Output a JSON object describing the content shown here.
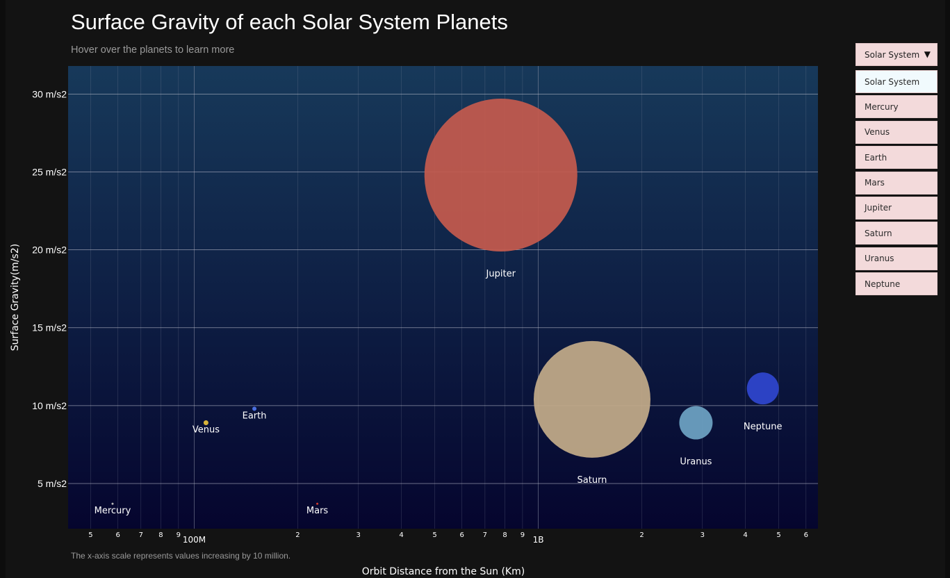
{
  "header": {
    "title": "Surface Gravity of each Solar System Planets",
    "subtitle": "Hover over the planets to learn more"
  },
  "footnote": "The x-axis scale represents values increasing by 10 million.",
  "dropdown": {
    "selected": "Solar System",
    "arrow": "▼",
    "options": [
      "Solar System",
      "Mercury",
      "Venus",
      "Earth",
      "Mars",
      "Jupiter",
      "Saturn",
      "Uranus",
      "Neptune"
    ]
  },
  "chart_data": {
    "type": "scatter",
    "title": "Surface Gravity of each Solar System Planets",
    "subtitle": "Hover over the planets to learn more",
    "xlabel": "Orbit Distance from the Sun (Km)",
    "ylabel": "Surface Gravity(m/s2)",
    "x_scale": "log",
    "xlim": [
      43000000,
      6500000000
    ],
    "ylim": [
      2.1,
      31.8
    ],
    "y_ticks": [
      5,
      10,
      15,
      20,
      25,
      30
    ],
    "y_tick_labels": [
      "5 m/s2",
      "10 m/s2",
      "15 m/s2",
      "20 m/s2",
      "25 m/s2",
      "30 m/s2"
    ],
    "x_ticks": [
      {
        "value": 50000000,
        "label": "5"
      },
      {
        "value": 60000000,
        "label": "6"
      },
      {
        "value": 70000000,
        "label": "7"
      },
      {
        "value": 80000000,
        "label": "8"
      },
      {
        "value": 90000000,
        "label": "9"
      },
      {
        "value": 100000000,
        "label": "100M"
      },
      {
        "value": 200000000,
        "label": "2"
      },
      {
        "value": 300000000,
        "label": "3"
      },
      {
        "value": 400000000,
        "label": "4"
      },
      {
        "value": 500000000,
        "label": "5"
      },
      {
        "value": 600000000,
        "label": "6"
      },
      {
        "value": 700000000,
        "label": "7"
      },
      {
        "value": 800000000,
        "label": "8"
      },
      {
        "value": 900000000,
        "label": "9"
      },
      {
        "value": 1000000000,
        "label": "1B"
      },
      {
        "value": 2000000000,
        "label": "2"
      },
      {
        "value": 3000000000,
        "label": "3"
      },
      {
        "value": 4000000000,
        "label": "4"
      },
      {
        "value": 5000000000,
        "label": "5"
      },
      {
        "value": 6000000000,
        "label": "6"
      }
    ],
    "grid": true,
    "legend": "none",
    "series": [
      {
        "name": "Mercury",
        "x": 57900000,
        "y": 3.7,
        "size": 1.5,
        "color": "#b9b9b9"
      },
      {
        "name": "Venus",
        "x": 108200000,
        "y": 8.9,
        "size": 3.5,
        "color": "#d8b43a"
      },
      {
        "name": "Earth",
        "x": 149600000,
        "y": 9.8,
        "size": 3,
        "color": "#4a6fe0"
      },
      {
        "name": "Mars",
        "x": 227900000,
        "y": 3.7,
        "size": 1.5,
        "color": "#d23b2f"
      },
      {
        "name": "Jupiter",
        "x": 778600000,
        "y": 24.8,
        "size": 110,
        "color": "#c45a4e"
      },
      {
        "name": "Saturn",
        "x": 1433500000,
        "y": 10.4,
        "size": 84,
        "color": "#c3ab89"
      },
      {
        "name": "Uranus",
        "x": 2872500000,
        "y": 8.9,
        "size": 24,
        "color": "#6ea2c3"
      },
      {
        "name": "Neptune",
        "x": 4495100000,
        "y": 11.1,
        "size": 23,
        "color": "#2f46cf"
      }
    ],
    "colors": {
      "plot_top": "#17395a",
      "plot_bottom": "#05052e",
      "grid": "#8a8fa3",
      "text": "#ffffff"
    }
  }
}
